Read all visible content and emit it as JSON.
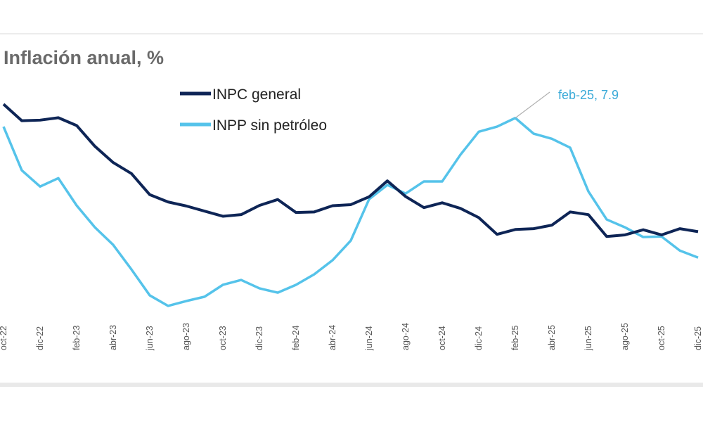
{
  "chart_data": {
    "type": "line",
    "title": "Inflación anual, %",
    "xlabel": "",
    "ylabel": "",
    "ylim": [
      0,
      9.3
    ],
    "grid": false,
    "legend_position": "top-center",
    "x": [
      "oct-22",
      "nov-22",
      "dic-22",
      "ene-23",
      "feb-23",
      "mar-23",
      "abr-23",
      "may-23",
      "jun-23",
      "jul-23",
      "ago-23",
      "sep-23",
      "oct-23",
      "nov-23",
      "dic-23",
      "ene-24",
      "feb-24",
      "mar-24",
      "abr-24",
      "may-24",
      "jun-24",
      "jul-24",
      "ago-24",
      "sep-24",
      "oct-24",
      "nov-24",
      "dic-24",
      "ene-25",
      "feb-25",
      "mar-25",
      "abr-25",
      "may-25",
      "jun-25",
      "jul-25",
      "ago-25",
      "sep-25",
      "oct-25",
      "nov-25",
      "dic-25"
    ],
    "tick_labels": [
      "oct-22",
      "dic-22",
      "feb-23",
      "abr-23",
      "jun-23",
      "ago-23",
      "oct-23",
      "dic-23",
      "feb-24",
      "abr-24",
      "jun-24",
      "ago-24",
      "oct-24",
      "dic-24",
      "feb-25",
      "abr-25",
      "jun-25",
      "ago-25",
      "oct-25",
      "dic-25"
    ],
    "series": [
      {
        "name": "INPC general",
        "color": "#0e2556",
        "values": [
          8.41,
          7.8,
          7.82,
          7.91,
          7.62,
          6.85,
          6.25,
          5.84,
          5.06,
          4.79,
          4.64,
          4.45,
          4.26,
          4.32,
          4.66,
          4.88,
          4.4,
          4.42,
          4.65,
          4.69,
          4.98,
          5.57,
          4.99,
          4.58,
          4.76,
          4.55,
          4.21,
          3.59,
          3.77,
          3.8,
          3.93,
          4.42,
          4.32,
          3.51,
          3.57,
          3.76,
          3.57,
          3.8,
          3.69
        ]
      },
      {
        "name": "INPP sin petróleo",
        "color": "#55c3ea",
        "values": [
          7.58,
          5.96,
          5.36,
          5.67,
          4.66,
          3.85,
          3.2,
          2.29,
          1.33,
          0.94,
          1.12,
          1.28,
          1.72,
          1.9,
          1.59,
          1.43,
          1.72,
          2.11,
          2.63,
          3.36,
          4.89,
          5.42,
          5.1,
          5.55,
          5.55,
          6.54,
          7.39,
          7.58,
          7.9,
          7.32,
          7.13,
          6.8,
          5.18,
          4.14,
          3.85,
          3.49,
          3.51,
          2.99,
          2.73
        ]
      }
    ],
    "annotations": [
      {
        "text": "feb-25, 7.9",
        "x": "feb-25",
        "y": 7.9,
        "series": "INPP sin petróleo"
      }
    ]
  }
}
